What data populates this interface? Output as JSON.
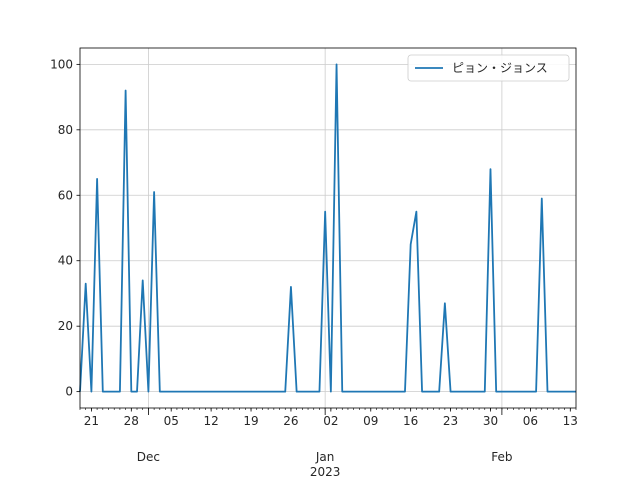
{
  "chart_data": {
    "type": "line",
    "title": "",
    "xlabel": "",
    "ylabel": "",
    "x_range": [
      "2022-11-19",
      "2023-02-14"
    ],
    "ylim": [
      -5,
      105
    ],
    "grid": true,
    "legend_position": "upper right",
    "y_ticks": [
      0,
      20,
      40,
      60,
      80,
      100
    ],
    "x_ticks": [
      {
        "date": "2022-11-21",
        "label": "21"
      },
      {
        "date": "2022-11-28",
        "label": "28"
      },
      {
        "date": "2022-12-05",
        "label": "05"
      },
      {
        "date": "2022-12-12",
        "label": "12"
      },
      {
        "date": "2022-12-19",
        "label": "19"
      },
      {
        "date": "2022-12-26",
        "label": "26"
      },
      {
        "date": "2023-01-02",
        "label": "02"
      },
      {
        "date": "2023-01-09",
        "label": "09"
      },
      {
        "date": "2023-01-16",
        "label": "16"
      },
      {
        "date": "2023-01-23",
        "label": "23"
      },
      {
        "date": "2023-01-30",
        "label": "30"
      },
      {
        "date": "2023-02-06",
        "label": "06"
      },
      {
        "date": "2023-02-13",
        "label": "13"
      }
    ],
    "x_major_ticks": [
      {
        "date": "2022-12-01",
        "label": "Dec"
      },
      {
        "date": "2023-01-01",
        "label": "Jan\n2023"
      },
      {
        "date": "2023-02-01",
        "label": "Feb"
      }
    ],
    "series": [
      {
        "name": "ピョン・ジョンス",
        "color": "#1f77b4",
        "points": [
          [
            "2022-11-19",
            0
          ],
          [
            "2022-11-20",
            33
          ],
          [
            "2022-11-21",
            0
          ],
          [
            "2022-11-22",
            65
          ],
          [
            "2022-11-23",
            0
          ],
          [
            "2022-11-24",
            0
          ],
          [
            "2022-11-25",
            0
          ],
          [
            "2022-11-26",
            0
          ],
          [
            "2022-11-27",
            92
          ],
          [
            "2022-11-28",
            0
          ],
          [
            "2022-11-29",
            0
          ],
          [
            "2022-11-30",
            34
          ],
          [
            "2022-12-01",
            0
          ],
          [
            "2022-12-02",
            61
          ],
          [
            "2022-12-03",
            0
          ],
          [
            "2022-12-04",
            0
          ],
          [
            "2022-12-05",
            0
          ],
          [
            "2022-12-06",
            0
          ],
          [
            "2022-12-07",
            0
          ],
          [
            "2022-12-08",
            0
          ],
          [
            "2022-12-09",
            0
          ],
          [
            "2022-12-10",
            0
          ],
          [
            "2022-12-11",
            0
          ],
          [
            "2022-12-12",
            0
          ],
          [
            "2022-12-13",
            0
          ],
          [
            "2022-12-14",
            0
          ],
          [
            "2022-12-15",
            0
          ],
          [
            "2022-12-16",
            0
          ],
          [
            "2022-12-17",
            0
          ],
          [
            "2022-12-18",
            0
          ],
          [
            "2022-12-19",
            0
          ],
          [
            "2022-12-20",
            0
          ],
          [
            "2022-12-21",
            0
          ],
          [
            "2022-12-22",
            0
          ],
          [
            "2022-12-23",
            0
          ],
          [
            "2022-12-24",
            0
          ],
          [
            "2022-12-25",
            0
          ],
          [
            "2022-12-26",
            32
          ],
          [
            "2022-12-27",
            0
          ],
          [
            "2022-12-28",
            0
          ],
          [
            "2022-12-29",
            0
          ],
          [
            "2022-12-30",
            0
          ],
          [
            "2022-12-31",
            0
          ],
          [
            "2023-01-01",
            55
          ],
          [
            "2023-01-02",
            0
          ],
          [
            "2023-01-03",
            100
          ],
          [
            "2023-01-04",
            0
          ],
          [
            "2023-01-05",
            0
          ],
          [
            "2023-01-06",
            0
          ],
          [
            "2023-01-07",
            0
          ],
          [
            "2023-01-08",
            0
          ],
          [
            "2023-01-09",
            0
          ],
          [
            "2023-01-10",
            0
          ],
          [
            "2023-01-11",
            0
          ],
          [
            "2023-01-12",
            0
          ],
          [
            "2023-01-13",
            0
          ],
          [
            "2023-01-14",
            0
          ],
          [
            "2023-01-15",
            0
          ],
          [
            "2023-01-16",
            45
          ],
          [
            "2023-01-17",
            55
          ],
          [
            "2023-01-18",
            0
          ],
          [
            "2023-01-19",
            0
          ],
          [
            "2023-01-20",
            0
          ],
          [
            "2023-01-21",
            0
          ],
          [
            "2023-01-22",
            27
          ],
          [
            "2023-01-23",
            0
          ],
          [
            "2023-01-24",
            0
          ],
          [
            "2023-01-25",
            0
          ],
          [
            "2023-01-26",
            0
          ],
          [
            "2023-01-27",
            0
          ],
          [
            "2023-01-28",
            0
          ],
          [
            "2023-01-29",
            0
          ],
          [
            "2023-01-30",
            68
          ],
          [
            "2023-01-31",
            0
          ],
          [
            "2023-02-01",
            0
          ],
          [
            "2023-02-02",
            0
          ],
          [
            "2023-02-03",
            0
          ],
          [
            "2023-02-04",
            0
          ],
          [
            "2023-02-05",
            0
          ],
          [
            "2023-02-06",
            0
          ],
          [
            "2023-02-07",
            0
          ],
          [
            "2023-02-08",
            59
          ],
          [
            "2023-02-09",
            0
          ],
          [
            "2023-02-10",
            0
          ],
          [
            "2023-02-11",
            0
          ],
          [
            "2023-02-12",
            0
          ],
          [
            "2023-02-13",
            0
          ],
          [
            "2023-02-14",
            0
          ]
        ]
      }
    ]
  }
}
